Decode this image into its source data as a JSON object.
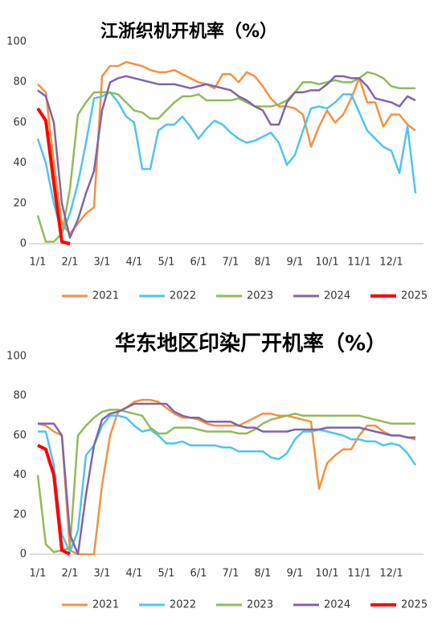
{
  "chart_data": [
    {
      "type": "line",
      "title": "江浙织机开机率（%）",
      "categories": [
        "1/1",
        null,
        null,
        null,
        "2/1",
        null,
        null,
        null,
        "3/1",
        null,
        null,
        null,
        "4/1",
        null,
        null,
        null,
        "5/1",
        null,
        null,
        null,
        "6/1",
        null,
        null,
        null,
        "7/1",
        null,
        null,
        null,
        "8/1",
        null,
        null,
        null,
        "9/1",
        null,
        null,
        null,
        "10/1",
        null,
        null,
        null,
        "11/1",
        null,
        null,
        null,
        "12/1",
        null,
        null,
        null
      ],
      "ylim": [
        0,
        100
      ],
      "yticks": [
        0,
        20,
        40,
        60,
        80,
        100
      ],
      "grid": false,
      "legend": "bottom",
      "series": [
        {
          "name": "2021",
          "color": "#f39242",
          "values": [
            79,
            75,
            40,
            10,
            5,
            10,
            15,
            18,
            83,
            88,
            88,
            90,
            89,
            88,
            86,
            85,
            85,
            86,
            84,
            82,
            80,
            79,
            77,
            84,
            84,
            80,
            85,
            83,
            78,
            72,
            68,
            68,
            67,
            64,
            48,
            58,
            66,
            60,
            64,
            72,
            82,
            70,
            70,
            58,
            64,
            64,
            59,
            56
          ]
        },
        {
          "name": "2022",
          "color": "#4fc4f0",
          "values": [
            52,
            40,
            20,
            5,
            15,
            30,
            50,
            72,
            73,
            75,
            70,
            63,
            60,
            37,
            37,
            56,
            59,
            59,
            63,
            58,
            52,
            57,
            61,
            59,
            55,
            52,
            50,
            51,
            53,
            55,
            50,
            39,
            44,
            56,
            67,
            68,
            67,
            70,
            74,
            74,
            65,
            56,
            52,
            48,
            46,
            35,
            58,
            25
          ]
        },
        {
          "name": "2023",
          "color": "#93ba5a",
          "values": [
            14,
            1,
            1,
            5,
            27,
            64,
            70,
            75,
            75,
            75,
            74,
            70,
            66,
            65,
            62,
            62,
            66,
            70,
            73,
            73,
            74,
            71,
            71,
            71,
            71,
            72,
            70,
            68,
            68,
            68,
            69,
            71,
            75,
            80,
            80,
            79,
            80,
            81,
            80,
            80,
            82,
            85,
            84,
            82,
            78,
            77,
            77,
            77
          ]
        },
        {
          "name": "2024",
          "color": "#8064a8",
          "values": [
            76,
            73,
            60,
            20,
            3,
            12,
            25,
            36,
            66,
            80,
            82,
            83,
            82,
            81,
            80,
            79,
            79,
            79,
            78,
            77,
            78,
            79,
            78,
            77,
            76,
            73,
            71,
            68,
            66,
            59,
            59,
            70,
            75,
            75,
            76,
            76,
            79,
            83,
            83,
            82,
            82,
            78,
            72,
            71,
            70,
            68,
            73,
            71
          ]
        },
        {
          "name": "2025",
          "color": "#ff0000",
          "values": [
            67,
            61,
            30,
            1,
            0,
            null,
            null,
            null,
            null,
            null,
            null,
            null,
            null,
            null,
            null,
            null,
            null,
            null,
            null,
            null,
            null,
            null,
            null,
            null,
            null,
            null,
            null,
            null,
            null,
            null,
            null,
            null,
            null,
            null,
            null,
            null,
            null,
            null,
            null,
            null,
            null,
            null,
            null,
            null,
            null,
            null,
            null,
            null
          ]
        }
      ]
    },
    {
      "type": "line",
      "title": "华东地区印染厂开机率（%）",
      "categories": [
        "1/1",
        null,
        null,
        null,
        "2/1",
        null,
        null,
        null,
        "3/1",
        null,
        null,
        null,
        "4/1",
        null,
        null,
        null,
        "5/1",
        null,
        null,
        null,
        "6/1",
        null,
        null,
        null,
        "7/1",
        null,
        null,
        null,
        "8/1",
        null,
        null,
        null,
        "9/1",
        null,
        null,
        null,
        "10/1",
        null,
        null,
        null,
        "11/1",
        null,
        null,
        null,
        "12/1",
        null,
        null,
        null
      ],
      "ylim": [
        0,
        100
      ],
      "yticks": [
        0,
        20,
        40,
        60,
        80,
        100
      ],
      "grid": false,
      "legend": "bottom",
      "series": [
        {
          "name": "2021",
          "color": "#f39242",
          "values": [
            66,
            65,
            62,
            60,
            2,
            0,
            0,
            0,
            35,
            60,
            72,
            74,
            77,
            78,
            78,
            77,
            74,
            71,
            69,
            69,
            68,
            66,
            65,
            65,
            65,
            65,
            67,
            69,
            71,
            71,
            70,
            70,
            69,
            68,
            67,
            33,
            46,
            50,
            53,
            53,
            60,
            65,
            65,
            62,
            60,
            60,
            59,
            58
          ]
        },
        {
          "name": "2022",
          "color": "#4fc4f0",
          "values": [
            62,
            62,
            45,
            10,
            1,
            12,
            50,
            55,
            65,
            70,
            70,
            69,
            65,
            62,
            63,
            60,
            56,
            56,
            57,
            55,
            55,
            55,
            55,
            54,
            54,
            52,
            52,
            52,
            52,
            49,
            48,
            51,
            58,
            62,
            62,
            63,
            62,
            61,
            60,
            58,
            58,
            57,
            57,
            55,
            56,
            55,
            51,
            45
          ]
        },
        {
          "name": "2023",
          "color": "#93ba5a",
          "values": [
            40,
            5,
            1,
            2,
            3,
            60,
            65,
            69,
            72,
            73,
            73,
            72,
            71,
            70,
            64,
            61,
            61,
            64,
            64,
            64,
            63,
            62,
            62,
            62,
            62,
            61,
            61,
            63,
            66,
            68,
            69,
            70,
            71,
            70,
            70,
            70,
            70,
            70,
            70,
            70,
            70,
            69,
            68,
            67,
            66,
            66,
            66,
            66
          ]
        },
        {
          "name": "2024",
          "color": "#8064a8",
          "values": [
            66,
            66,
            66,
            60,
            10,
            0,
            30,
            55,
            68,
            71,
            72,
            74,
            76,
            76,
            76,
            76,
            76,
            72,
            70,
            69,
            69,
            67,
            67,
            67,
            67,
            65,
            64,
            64,
            62,
            62,
            62,
            62,
            63,
            63,
            63,
            63,
            64,
            64,
            64,
            64,
            64,
            63,
            62,
            61,
            60,
            60,
            59,
            59
          ]
        },
        {
          "name": "2025",
          "color": "#ff0000",
          "values": [
            55,
            53,
            40,
            2,
            0,
            null,
            null,
            null,
            null,
            null,
            null,
            null,
            null,
            null,
            null,
            null,
            null,
            null,
            null,
            null,
            null,
            null,
            null,
            null,
            null,
            null,
            null,
            null,
            null,
            null,
            null,
            null,
            null,
            null,
            null,
            null,
            null,
            null,
            null,
            null,
            null,
            null,
            null,
            null,
            null,
            null,
            null,
            null
          ]
        }
      ]
    }
  ]
}
